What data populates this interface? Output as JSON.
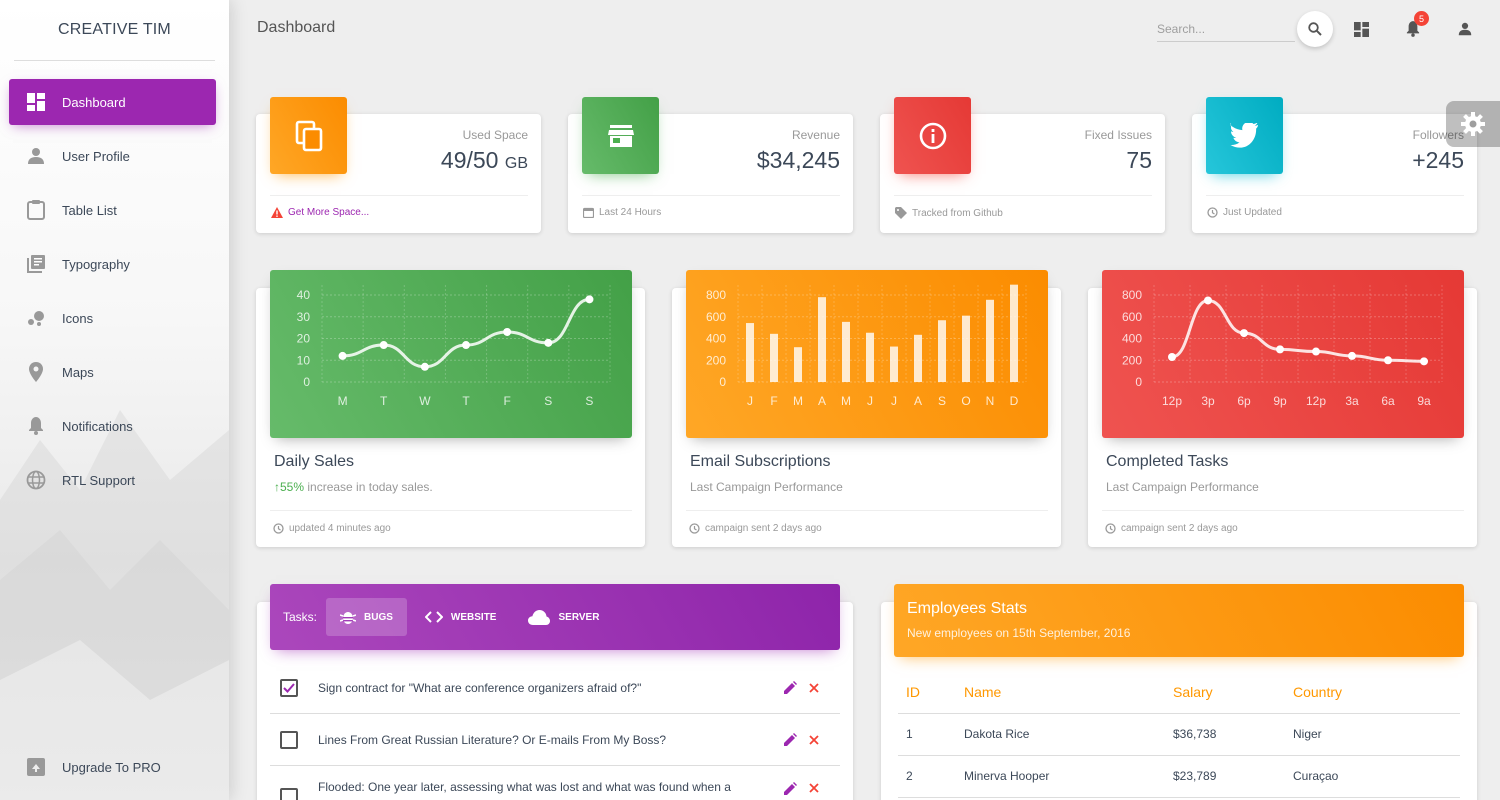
{
  "sidebar": {
    "brand": "CREATIVE TIM",
    "items": [
      {
        "label": "Dashboard",
        "icon": "dashboard-icon",
        "active": true
      },
      {
        "label": "User Profile",
        "icon": "person-icon"
      },
      {
        "label": "Table List",
        "icon": "clipboard-icon"
      },
      {
        "label": "Typography",
        "icon": "library-books-icon"
      },
      {
        "label": "Icons",
        "icon": "bubble-chart-icon"
      },
      {
        "label": "Maps",
        "icon": "location-pin-icon"
      },
      {
        "label": "Notifications",
        "icon": "bell-icon"
      },
      {
        "label": "RTL Support",
        "icon": "globe-icon"
      }
    ],
    "upgrade": "Upgrade To PRO"
  },
  "header": {
    "title": "Dashboard",
    "search_placeholder": "Search...",
    "notification_count": "5"
  },
  "stats": [
    {
      "category": "Used Space",
      "value": "49/50",
      "unit": "GB",
      "footer": "Get More Space...",
      "color": "#fb8c00",
      "icon": "copy-icon"
    },
    {
      "category": "Revenue",
      "value": "$34,245",
      "footer": "Last 24 Hours",
      "color": "#43a047",
      "icon": "store-icon"
    },
    {
      "category": "Fixed Issues",
      "value": "75",
      "footer": "Tracked from Github",
      "color": "#e53935",
      "icon": "info-icon"
    },
    {
      "category": "Followers",
      "value": "+245",
      "footer": "Just Updated",
      "color": "#00acc1",
      "icon": "twitter-icon"
    }
  ],
  "charts": [
    {
      "title": "Daily Sales",
      "subtitle_pct": "55%",
      "subtitle_rest": " increase in today sales.",
      "footer": "updated 4 minutes ago"
    },
    {
      "title": "Email Subscriptions",
      "subtitle": "Last Campaign Performance",
      "footer": "campaign sent 2 days ago"
    },
    {
      "title": "Completed Tasks",
      "subtitle": "Last Campaign Performance",
      "footer": "campaign sent 2 days ago"
    }
  ],
  "chart_data": [
    {
      "type": "line",
      "categories": [
        "M",
        "T",
        "W",
        "T",
        "F",
        "S",
        "S"
      ],
      "values": [
        12,
        17,
        7,
        17,
        23,
        18,
        38
      ],
      "yticks": [
        0,
        10,
        20,
        30,
        40
      ],
      "ylim": [
        0,
        40
      ],
      "grid": true
    },
    {
      "type": "bar",
      "categories": [
        "J",
        "F",
        "M",
        "A",
        "M",
        "J",
        "J",
        "A",
        "S",
        "O",
        "N",
        "D"
      ],
      "values": [
        542,
        443,
        320,
        780,
        553,
        453,
        326,
        434,
        568,
        610,
        756,
        895
      ],
      "yticks": [
        0,
        200,
        400,
        600,
        800
      ],
      "ylim": [
        0,
        800
      ],
      "grid": true
    },
    {
      "type": "line",
      "categories": [
        "12p",
        "3p",
        "6p",
        "9p",
        "12p",
        "3a",
        "6a",
        "9a"
      ],
      "values": [
        230,
        750,
        450,
        300,
        280,
        240,
        200,
        190
      ],
      "yticks": [
        0,
        200,
        400,
        600,
        800
      ],
      "ylim": [
        0,
        800
      ],
      "grid": true
    }
  ],
  "tasks": {
    "label": "Tasks:",
    "tabs": [
      {
        "label": "BUGS",
        "icon": "bug-icon",
        "active": true
      },
      {
        "label": "WEBSITE",
        "icon": "code-icon"
      },
      {
        "label": "SERVER",
        "icon": "cloud-icon"
      }
    ],
    "items": [
      {
        "text": "Sign contract for \"What are conference organizers afraid of?\"",
        "checked": true
      },
      {
        "text": "Lines From Great Russian Literature? Or E-mails From My Boss?",
        "checked": false
      },
      {
        "text": "Flooded: One year later, assessing what was lost and what was found when a",
        "checked": false
      }
    ]
  },
  "employees": {
    "title": "Employees Stats",
    "subtitle": "New employees on 15th September, 2016",
    "headers": [
      "ID",
      "Name",
      "Salary",
      "Country"
    ],
    "rows": [
      [
        "1",
        "Dakota Rice",
        "$36,738",
        "Niger"
      ],
      [
        "2",
        "Minerva Hooper",
        "$23,789",
        "Curaçao"
      ]
    ]
  }
}
